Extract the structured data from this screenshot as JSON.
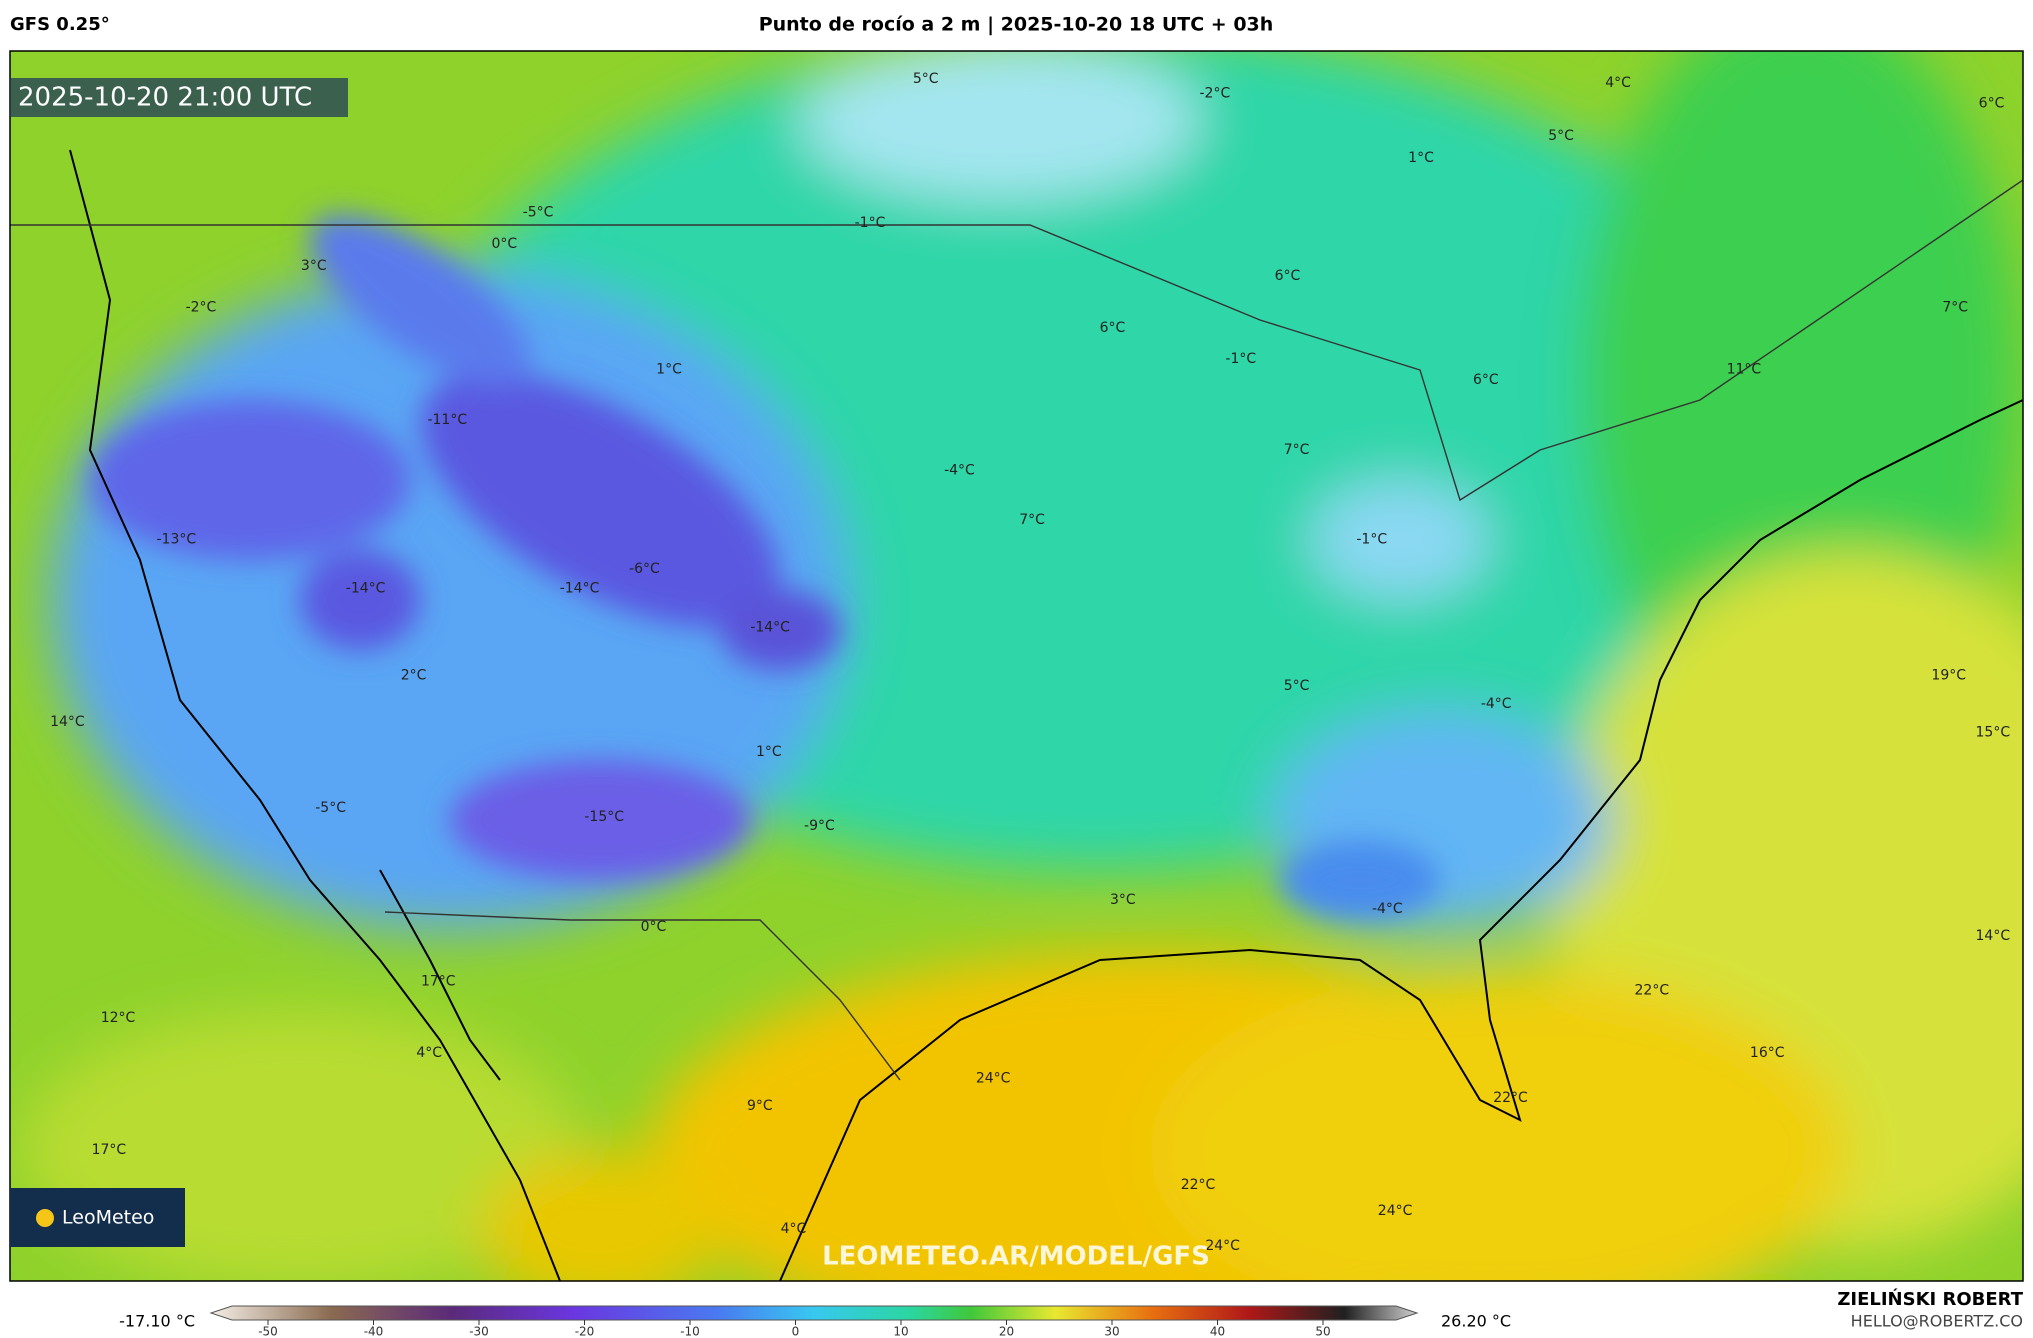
{
  "header": {
    "model": "GFS 0.25°",
    "title": "Punto de rocío a 2 m | 2025-10-20 18 UTC + 03h"
  },
  "map": {
    "timestamp": "2025-10-20 21:00 UTC",
    "logo": "LeoMeteo",
    "watermark": "LEOMETEO.AR/MODEL/GFS",
    "labels": [
      "5°C",
      "-2°C",
      "4°C",
      "6°C",
      "5°C",
      "1°C",
      "-5°C",
      "-1°C",
      "0°C",
      "3°C",
      "6°C",
      "-2°C",
      "7°C",
      "6°C",
      "-1°C",
      "1°C",
      "11°C",
      "6°C",
      "-11°C",
      "7°C",
      "-4°C",
      "7°C",
      "-13°C",
      "-1°C",
      "-6°C",
      "-14°C",
      "-14°C",
      "-14°C",
      "19°C",
      "2°C",
      "5°C",
      "-4°C",
      "14°C",
      "15°C",
      "1°C",
      "-5°C",
      "-15°C",
      "-9°C",
      "3°C",
      "-4°C",
      "0°C",
      "14°C",
      "17°C",
      "22°C",
      "12°C",
      "4°C",
      "16°C",
      "24°C",
      "22°C",
      "9°C",
      "17°C",
      "22°C",
      "4°C",
      "24°C",
      "24°C"
    ]
  },
  "colorbar": {
    "min_label": "-17.10 °C",
    "max_label": "26.20 °C",
    "ticks": [
      -50,
      -40,
      -30,
      -20,
      -10,
      0,
      10,
      20,
      30,
      40,
      50
    ]
  },
  "footer": {
    "author": "ZIELIŃSKI ROBERT",
    "email": "HELLO@ROBERTZ.CO"
  }
}
